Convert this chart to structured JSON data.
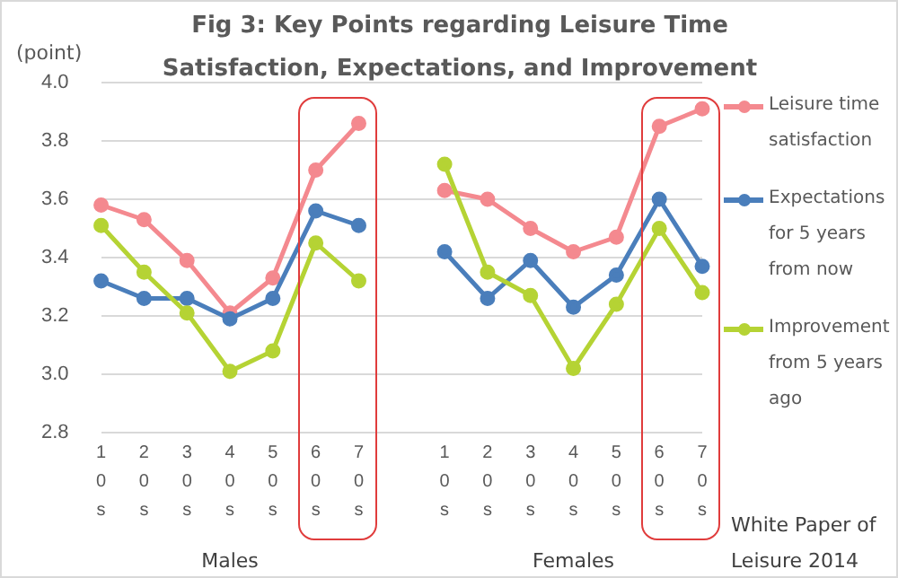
{
  "chart_data": {
    "type": "line",
    "title": "Fig 3: Key Points regarding Leisure Time Satisfaction, Expectations, and Improvement",
    "ylabel": "(point)",
    "categories": [
      "10s",
      "20s",
      "30s",
      "40s",
      "50s",
      "60s",
      "70s",
      null,
      "10s",
      "20s",
      "30s",
      "40s",
      "50s",
      "60s",
      "70s"
    ],
    "series": [
      {
        "name": "Leisure time satisfaction",
        "color": "#f4898f",
        "values": [
          3.58,
          3.53,
          3.39,
          3.21,
          3.33,
          3.7,
          3.86,
          null,
          3.63,
          3.6,
          3.5,
          3.42,
          3.47,
          3.85,
          3.91
        ]
      },
      {
        "name": "Expectations for 5 years from now",
        "color": "#4a7ebb",
        "values": [
          3.32,
          3.26,
          3.26,
          3.19,
          3.26,
          3.56,
          3.51,
          null,
          3.42,
          3.26,
          3.39,
          3.23,
          3.34,
          3.6,
          3.37
        ]
      },
      {
        "name": "Improvement from 5 years ago",
        "color": "#b5d334",
        "values": [
          3.51,
          3.35,
          3.21,
          3.01,
          3.08,
          3.45,
          3.32,
          null,
          3.72,
          3.35,
          3.27,
          3.02,
          3.24,
          3.5,
          3.28
        ]
      }
    ],
    "ylim": [
      2.8,
      4.0
    ],
    "yticks": [
      {
        "value": 2.8,
        "label": "2.8"
      },
      {
        "value": 3.0,
        "label": "3.0"
      },
      {
        "value": 3.2,
        "label": "3.2"
      },
      {
        "value": 3.4,
        "label": "3.4"
      },
      {
        "value": 3.6,
        "label": "3.6"
      },
      {
        "value": 3.8,
        "label": "3.8"
      },
      {
        "value": 4.0,
        "label": "4.0"
      }
    ],
    "annotations": [
      "Males",
      "Females",
      "White Paper of Leisure 2014"
    ],
    "grid": "y",
    "legend": "right",
    "marker": "circle",
    "line_style": "solid"
  }
}
